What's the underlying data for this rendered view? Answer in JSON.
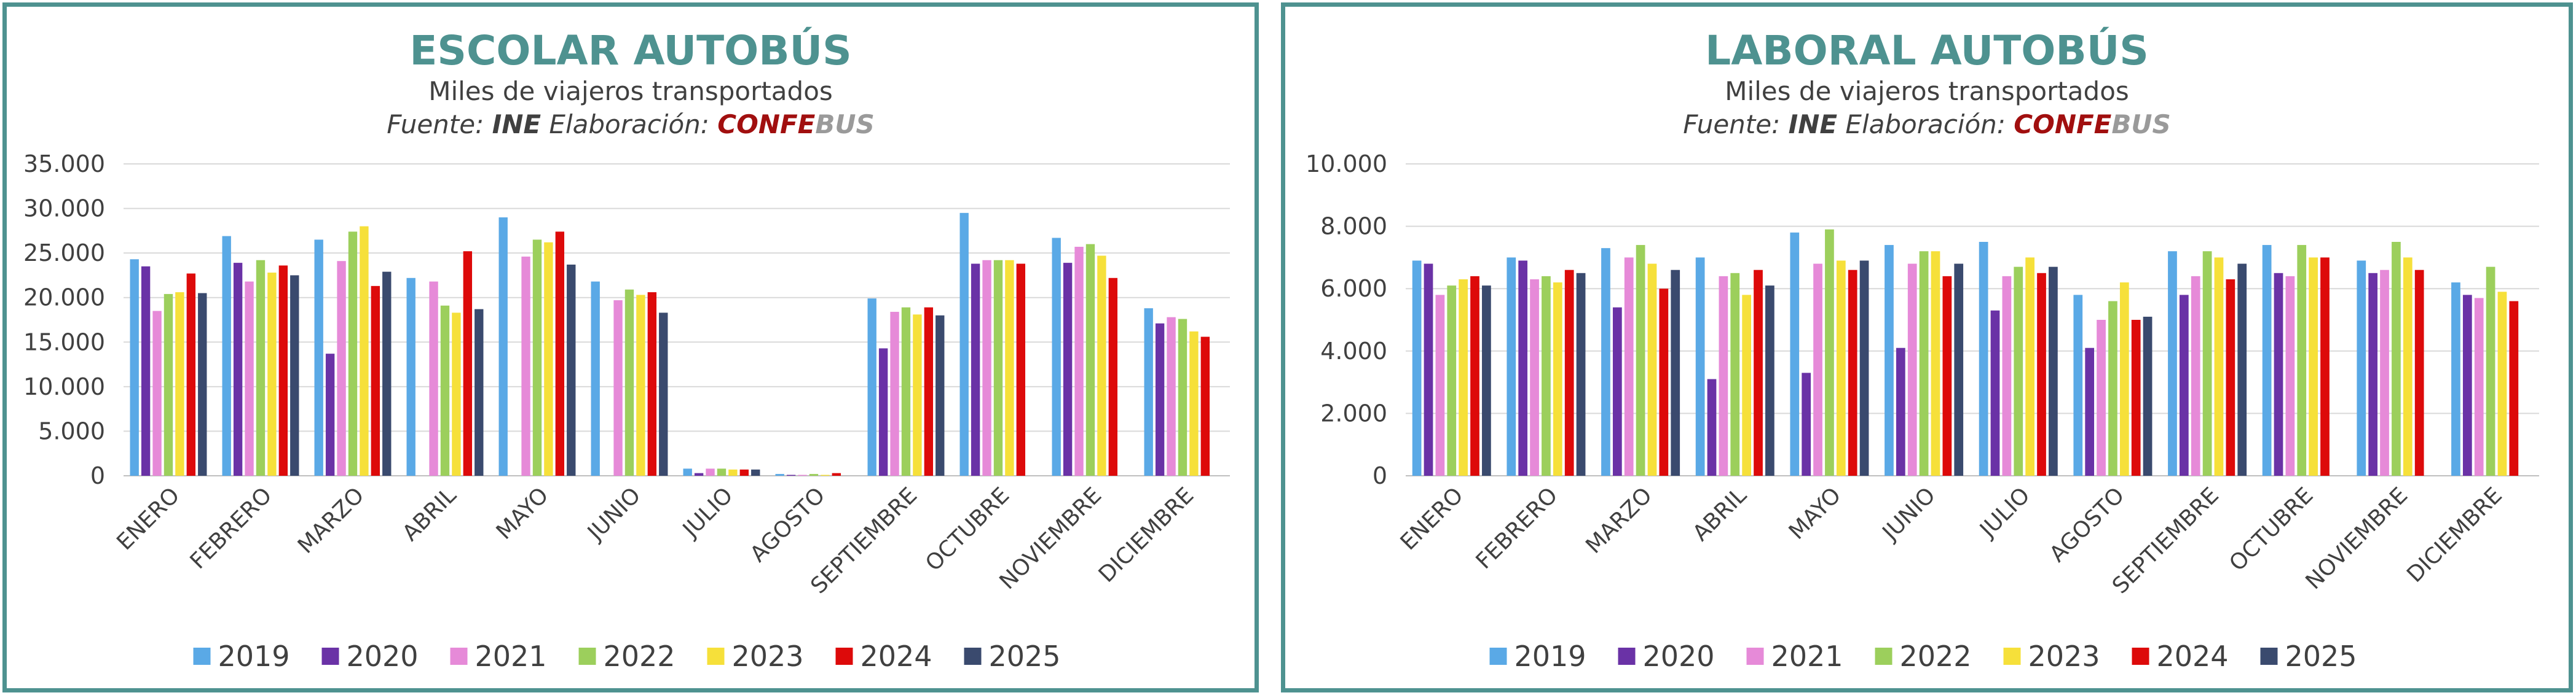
{
  "colors": {
    "border": "#4e9290",
    "title": "#4e9290",
    "series": [
      "#5aa9e6",
      "#6a32a6",
      "#e68ad8",
      "#9ccf5c",
      "#f6e03a",
      "#dd0a0a",
      "#3a4a6e"
    ]
  },
  "chart_data": [
    {
      "type": "bar",
      "title": "ESCOLAR AUTOBÚS",
      "subtitle": "Miles de viajeros transportados",
      "source": {
        "fuente_label": "Fuente:",
        "fuente_value": "INE",
        "elab_label": "Elaboración:",
        "brand_a": "CONFE",
        "brand_b": "BUS"
      },
      "categories": [
        "ENERO",
        "FEBRERO",
        "MARZO",
        "ABRIL",
        "MAYO",
        "JUNIO",
        "JULIO",
        "AGOSTO",
        "SEPTIEMBRE",
        "OCTUBRE",
        "NOVIEMBRE",
        "DICIEMBRE"
      ],
      "ylim": [
        0,
        35000
      ],
      "yticks": [
        0,
        5000,
        10000,
        15000,
        20000,
        25000,
        30000,
        35000
      ],
      "ytick_labels": [
        "0",
        "5.000",
        "10.000",
        "15.000",
        "20.000",
        "25.000",
        "30.000",
        "35.000"
      ],
      "grid": true,
      "legend_position": "bottom",
      "series": [
        {
          "name": "2019",
          "values": [
            24300,
            26900,
            26500,
            22200,
            29000,
            21800,
            800,
            200,
            19900,
            29500,
            26700,
            18800
          ]
        },
        {
          "name": "2020",
          "values": [
            23500,
            23900,
            13700,
            0,
            0,
            0,
            300,
            100,
            14300,
            23800,
            23900,
            17100
          ]
        },
        {
          "name": "2021",
          "values": [
            18500,
            21800,
            24100,
            21800,
            24600,
            19700,
            800,
            100,
            18400,
            24200,
            25700,
            17800
          ]
        },
        {
          "name": "2022",
          "values": [
            20400,
            24200,
            27400,
            19100,
            26500,
            20900,
            800,
            200,
            18900,
            24200,
            26000,
            17600
          ]
        },
        {
          "name": "2023",
          "values": [
            20600,
            22800,
            28000,
            18300,
            26200,
            20300,
            700,
            100,
            18100,
            24200,
            24700,
            16200
          ]
        },
        {
          "name": "2024",
          "values": [
            22700,
            23600,
            21300,
            25200,
            27400,
            20600,
            700,
            300,
            18900,
            23800,
            22200,
            15600
          ]
        },
        {
          "name": "2025",
          "values": [
            20500,
            22500,
            22900,
            18700,
            23700,
            18300,
            700,
            null,
            18000,
            null,
            null,
            null
          ]
        }
      ]
    },
    {
      "type": "bar",
      "title": "LABORAL AUTOBÚS",
      "subtitle": "Miles de viajeros transportados",
      "source": {
        "fuente_label": "Fuente:",
        "fuente_value": "INE",
        "elab_label": "Elaboración:",
        "brand_a": "CONFE",
        "brand_b": "BUS"
      },
      "categories": [
        "ENERO",
        "FEBRERO",
        "MARZO",
        "ABRIL",
        "MAYO",
        "JUNIO",
        "JULIO",
        "AGOSTO",
        "SEPTIEMBRE",
        "OCTUBRE",
        "NOVIEMBRE",
        "DICIEMBRE"
      ],
      "ylim": [
        0,
        10000
      ],
      "yticks": [
        0,
        2000,
        4000,
        6000,
        8000,
        10000
      ],
      "ytick_labels": [
        "0",
        "2.000",
        "4.000",
        "6.000",
        "8.000",
        "10.000"
      ],
      "grid": true,
      "legend_position": "bottom",
      "series": [
        {
          "name": "2019",
          "values": [
            6900,
            7000,
            7300,
            7000,
            7800,
            7400,
            7500,
            5800,
            7200,
            7400,
            6900,
            6200
          ]
        },
        {
          "name": "2020",
          "values": [
            6800,
            6900,
            5400,
            3100,
            3300,
            4100,
            5300,
            4100,
            5800,
            6500,
            6500,
            5800
          ]
        },
        {
          "name": "2021",
          "values": [
            5800,
            6300,
            7000,
            6400,
            6800,
            6800,
            6400,
            5000,
            6400,
            6400,
            6600,
            5700
          ]
        },
        {
          "name": "2022",
          "values": [
            6100,
            6400,
            7400,
            6500,
            7900,
            7200,
            6700,
            5600,
            7200,
            7400,
            7500,
            6700
          ]
        },
        {
          "name": "2023",
          "values": [
            6300,
            6200,
            6800,
            5800,
            6900,
            7200,
            7000,
            6200,
            7000,
            7000,
            7000,
            5900
          ]
        },
        {
          "name": "2024",
          "values": [
            6400,
            6600,
            6000,
            6600,
            6600,
            6400,
            6500,
            5000,
            6300,
            7000,
            6600,
            5600
          ]
        },
        {
          "name": "2025",
          "values": [
            6100,
            6500,
            6600,
            6100,
            6900,
            6800,
            6700,
            5100,
            6800,
            null,
            null,
            null
          ]
        }
      ]
    }
  ]
}
